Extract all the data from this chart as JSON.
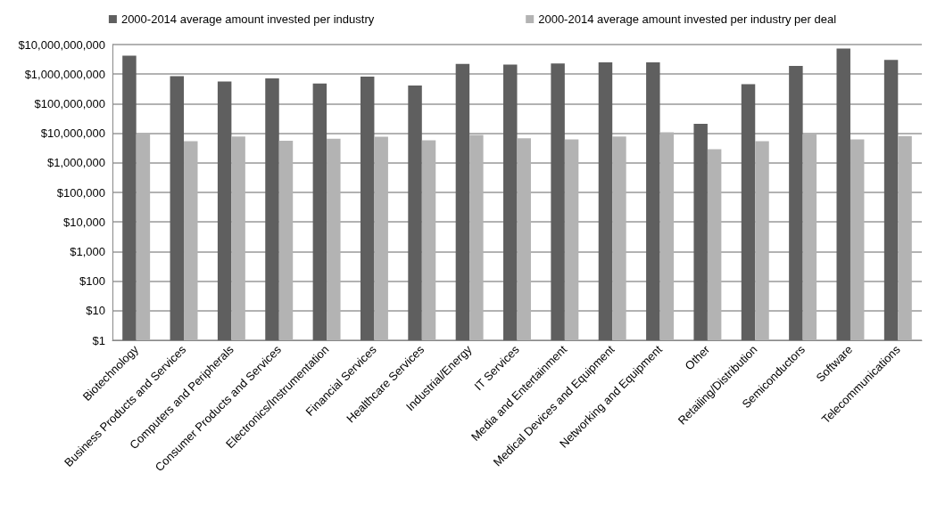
{
  "chart_data": {
    "type": "bar",
    "log": "y",
    "grid": "y",
    "legend": "top",
    "categories": [
      "Biotechnology",
      "Business Products and Services",
      "Computers and Peripherals",
      "Consumer Products and Services",
      "Electronics/Instrumentation",
      "Financial Services",
      "Healthcare Services",
      "Industrial/Energy",
      "IT Services",
      "Media and Entertainment",
      "Medical Devices and Equipment",
      "Networking and Equipment",
      "Other",
      "Retailing/Distribution",
      "Semiconductors",
      "Software",
      "Telecommunications"
    ],
    "series": [
      {
        "name": "2000-2014 average amount invested per industry",
        "color": "#5f5f5f",
        "values": [
          4200000000,
          850000000,
          560000000,
          720000000,
          480000000,
          830000000,
          410000000,
          2200000000,
          2100000000,
          2300000000,
          2500000000,
          2500000000,
          21000000,
          460000000,
          1900000000,
          7300000000,
          3000000000
        ]
      },
      {
        "name": "2000-2014 average amount invested per industry per deal",
        "color": "#b3b3b3",
        "values": [
          10000000,
          5400000,
          7700000,
          5600000,
          6500000,
          7600000,
          5800000,
          8700000,
          6700000,
          6200000,
          7700000,
          10700000,
          2900000,
          5400000,
          9500000,
          6200000,
          8100000
        ]
      }
    ],
    "ylim": [
      1,
      10000000000
    ],
    "yticks": [
      {
        "value": 1,
        "label": "$1"
      },
      {
        "value": 10,
        "label": "$10"
      },
      {
        "value": 100,
        "label": "$100"
      },
      {
        "value": 1000,
        "label": "$1,000"
      },
      {
        "value": 10000,
        "label": "$10,000"
      },
      {
        "value": 100000,
        "label": "$100,000"
      },
      {
        "value": 1000000,
        "label": "$1,000,000"
      },
      {
        "value": 10000000,
        "label": "$10,000,000"
      },
      {
        "value": 100000000,
        "label": "$100,000,000"
      },
      {
        "value": 1000000000,
        "label": "$1,000,000,000"
      },
      {
        "value": 10000000000,
        "label": "$10,000,000,000"
      }
    ]
  }
}
